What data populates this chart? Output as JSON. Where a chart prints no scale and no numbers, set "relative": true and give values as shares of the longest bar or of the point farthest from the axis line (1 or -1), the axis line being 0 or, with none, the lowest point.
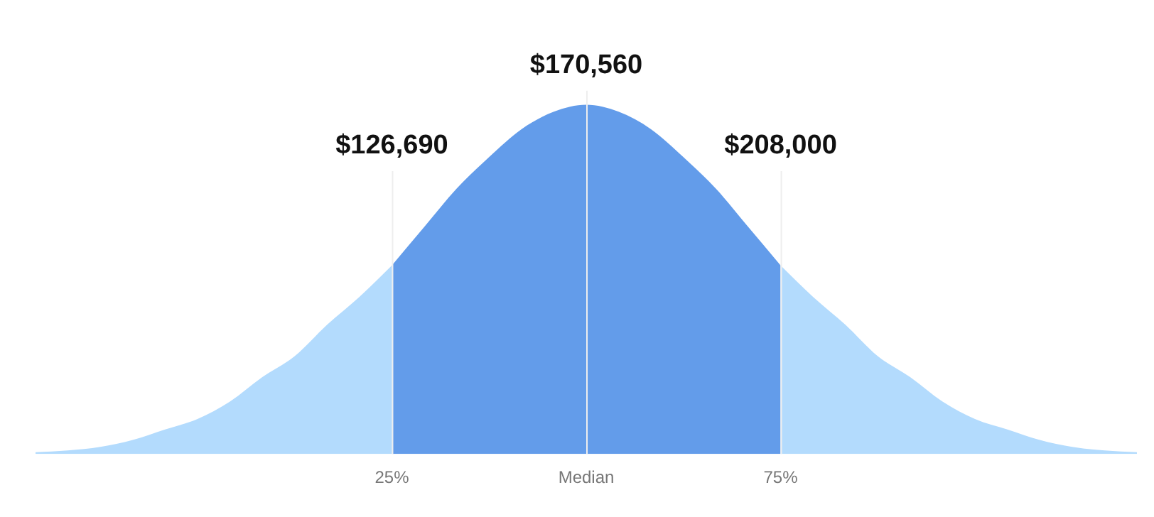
{
  "chart_data": {
    "type": "area",
    "relative": true,
    "grid": false,
    "legend": false,
    "categories": [
      null,
      null,
      null,
      null,
      null,
      null,
      null,
      null,
      null,
      null,
      null,
      "25%",
      null,
      null,
      null,
      null,
      null,
      "Median",
      null,
      null,
      null,
      null,
      null,
      "75%",
      null,
      null,
      null,
      null,
      null,
      null,
      null,
      null,
      null,
      null,
      null
    ],
    "series": [
      {
        "color": "#b3dbfd",
        "values": [
          0.005,
          0.01,
          0.02,
          0.04,
          0.07,
          0.1,
          0.15,
          0.22,
          0.28,
          0.37,
          0.45,
          0.54,
          null,
          null,
          null,
          null,
          null,
          null,
          null,
          null,
          null,
          null,
          null,
          0.54,
          0.45,
          0.37,
          0.28,
          0.22,
          0.15,
          0.1,
          0.07,
          0.04,
          0.02,
          0.01,
          0.005
        ]
      },
      {
        "color": "#639cea",
        "values": [
          null,
          null,
          null,
          null,
          null,
          null,
          null,
          null,
          null,
          null,
          null,
          0.54,
          0.65,
          0.76,
          0.85,
          0.93,
          0.98,
          1,
          0.98,
          0.93,
          0.85,
          0.76,
          0.65,
          0.54,
          null,
          null,
          null,
          null,
          null,
          null,
          null,
          null,
          null,
          null,
          null
        ]
      }
    ],
    "ref_lines": [
      {
        "axis": "x",
        "value": "25%",
        "label": "$126,690",
        "color": "#eeeeee"
      },
      {
        "axis": "x",
        "value": "Median",
        "label": "$170,560",
        "color": "#eeeeee"
      },
      {
        "axis": "x",
        "value": "75%",
        "label": "$208,000",
        "color": "#eeeeee"
      }
    ]
  }
}
